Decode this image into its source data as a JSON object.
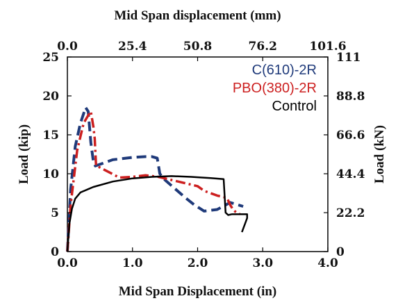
{
  "chart_data": {
    "type": "line",
    "xlabel": "Mid Span Displacement (in)",
    "x2label": "Mid Span displacement (mm)",
    "ylabel": "Load (kip)",
    "y2label": "Load (kN)",
    "xlim": [
      0,
      4
    ],
    "ylim": [
      0,
      25
    ],
    "x2lim": [
      0,
      101.6
    ],
    "y2lim": [
      0,
      111
    ],
    "x_ticks": [
      "0.0",
      "1.0",
      "2.0",
      "3.0",
      "4.0"
    ],
    "y_ticks": [
      "0",
      "5",
      "10",
      "15",
      "20",
      "25"
    ],
    "x2_ticks": [
      "0.0",
      "25.4",
      "50.8",
      "76.2",
      "101.6"
    ],
    "y2_ticks": [
      "0",
      "22.2",
      "44.4",
      "66.6",
      "88.8",
      "111"
    ],
    "grid": false,
    "legend_position": "top-right",
    "series": [
      {
        "name": "C(610)-2R",
        "color": "#1f3a7a",
        "style": "dashed",
        "x": [
          0.0,
          0.05,
          0.12,
          0.2,
          0.28,
          0.32,
          0.36,
          0.4,
          0.43,
          0.7,
          1.0,
          1.2,
          1.3,
          1.38,
          1.42,
          1.5,
          1.8,
          1.95,
          2.1,
          2.3,
          2.5,
          2.7
        ],
        "y": [
          0.0,
          8.0,
          13.5,
          16.5,
          18.5,
          18.0,
          14.0,
          11.5,
          11.0,
          11.8,
          12.1,
          12.2,
          12.2,
          12.0,
          10.0,
          9.2,
          7.0,
          6.0,
          5.2,
          5.4,
          6.3,
          5.8
        ]
      },
      {
        "name": "PBO(380)-2R",
        "color": "#cc1f1f",
        "style": "dash-dot",
        "x": [
          0.0,
          0.05,
          0.15,
          0.25,
          0.32,
          0.36,
          0.4,
          0.42,
          0.44,
          0.5,
          0.8,
          1.0,
          1.2,
          1.4,
          1.6,
          1.8,
          2.0,
          2.1,
          2.3,
          2.45,
          2.5,
          2.55,
          2.6,
          2.65
        ],
        "y": [
          0.0,
          6.0,
          13.0,
          16.5,
          17.5,
          18.0,
          16.0,
          14.5,
          11.0,
          10.8,
          9.5,
          9.6,
          9.8,
          9.6,
          9.2,
          8.8,
          8.4,
          7.8,
          7.2,
          6.9,
          6.0,
          5.3,
          5.0,
          4.8
        ]
      },
      {
        "name": "Control",
        "color": "#000000",
        "style": "solid",
        "x": [
          0.0,
          0.03,
          0.07,
          0.12,
          0.2,
          0.4,
          0.7,
          1.0,
          1.3,
          1.6,
          1.9,
          2.2,
          2.4,
          2.43,
          2.47,
          2.53,
          2.76,
          2.76,
          2.68
        ],
        "y": [
          0.0,
          3.5,
          5.5,
          6.8,
          7.6,
          8.3,
          9.0,
          9.4,
          9.6,
          9.7,
          9.6,
          9.45,
          9.3,
          5.0,
          4.7,
          4.8,
          4.8,
          4.3,
          2.5
        ]
      }
    ]
  }
}
